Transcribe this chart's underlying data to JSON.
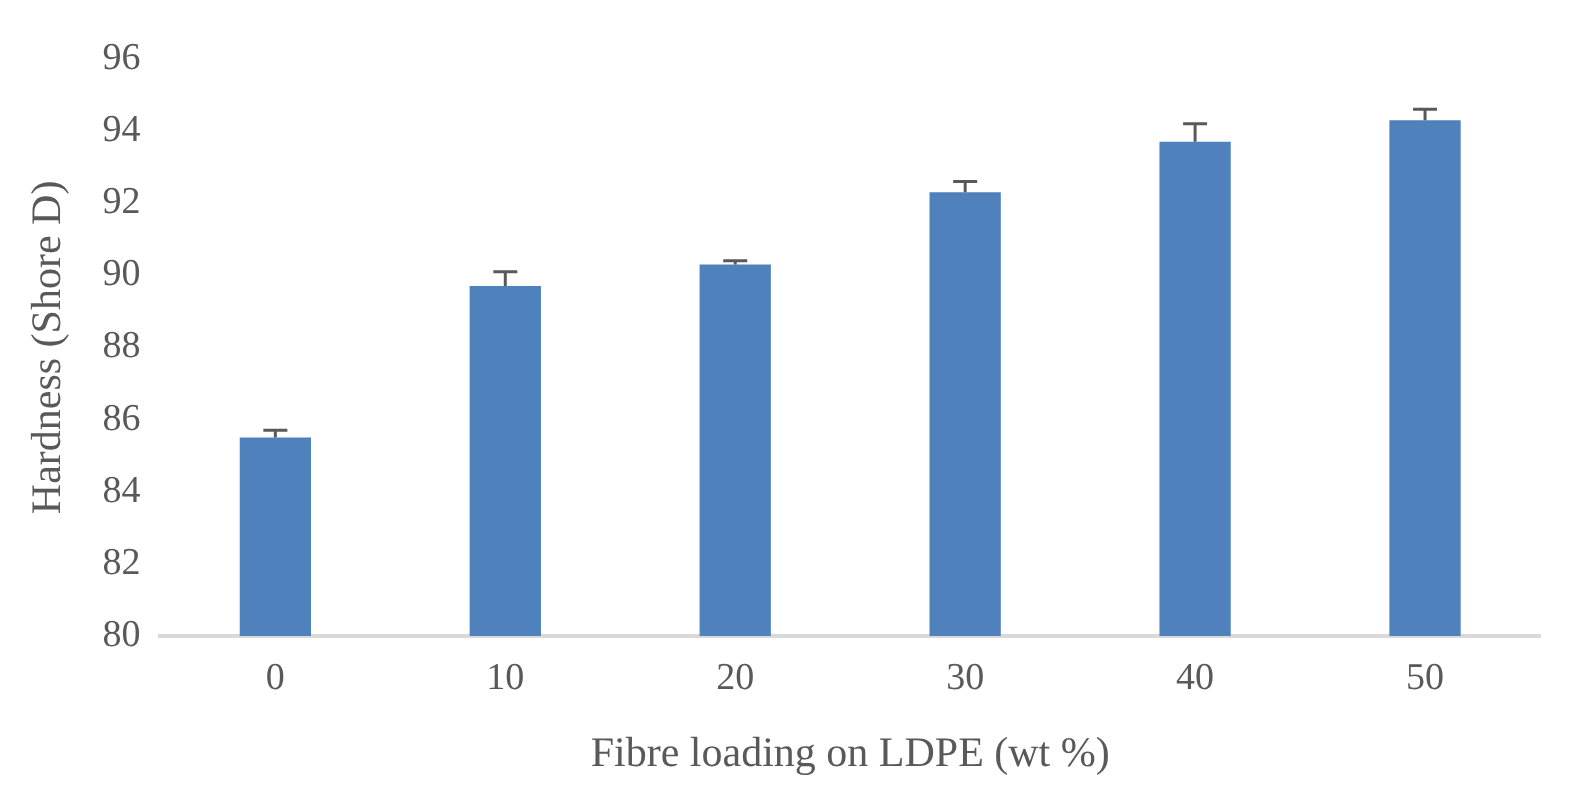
{
  "chart_data": {
    "type": "bar",
    "xlabel": "Fibre loading on LDPE (wt %)",
    "ylabel": "Hardness (Shore D)",
    "categories": [
      "0",
      "10",
      "20",
      "30",
      "40",
      "50"
    ],
    "values": [
      85.5,
      89.7,
      90.3,
      92.3,
      93.7,
      94.3
    ],
    "errors": [
      [
        85.5,
        85.7
      ],
      [
        89.7,
        90.1
      ],
      [
        90.3,
        90.4
      ],
      [
        92.3,
        92.6
      ],
      [
        93.7,
        94.2
      ],
      [
        94.3,
        94.6
      ]
    ],
    "color": "#4f81bd",
    "ylim": [
      80,
      96
    ],
    "yticks": [
      80,
      82,
      84,
      86,
      88,
      90,
      92,
      94,
      96
    ],
    "grid": false,
    "legend": false
  }
}
